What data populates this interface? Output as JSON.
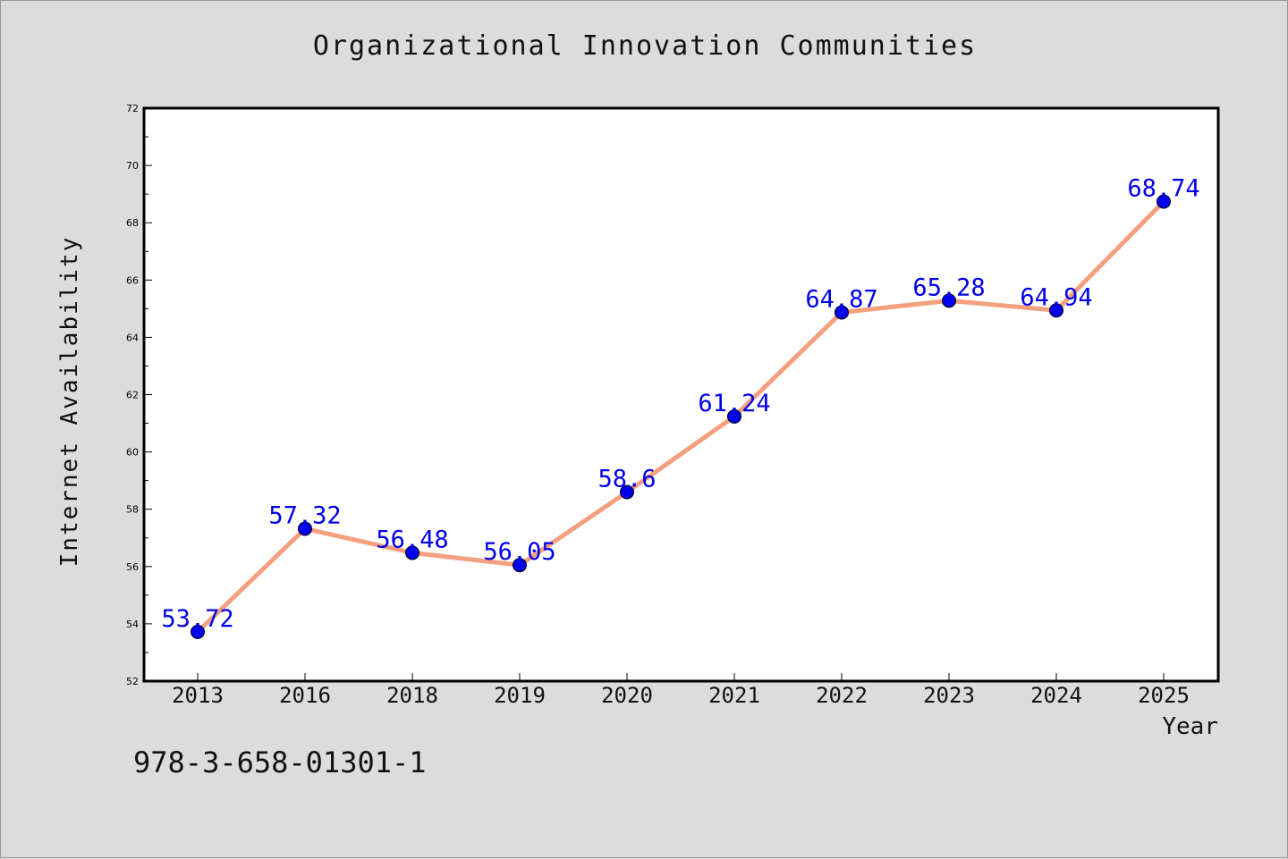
{
  "chart_data": {
    "type": "line",
    "title": "Organizational Innovation Communities",
    "xlabel": "Year",
    "ylabel": "Internet Availability",
    "categories": [
      "2013",
      "2016",
      "2018",
      "2019",
      "2020",
      "2021",
      "2022",
      "2023",
      "2024",
      "2025"
    ],
    "series": [
      {
        "values": [
          53.72,
          57.32,
          56.48,
          56.05,
          58.6,
          61.24,
          64.87,
          65.28,
          64.94,
          68.74
        ]
      }
    ],
    "data_labels": [
      "53.72",
      "57.32",
      "56.48",
      "56.05",
      "58.6",
      "61.24",
      "64.87",
      "65.28",
      "64.94",
      "68.74"
    ],
    "ylim": [
      52,
      72
    ],
    "yticks": [
      52,
      54,
      56,
      58,
      60,
      62,
      64,
      66,
      68,
      70,
      72
    ],
    "grid": false,
    "colors": {
      "line": "#f4a07f",
      "marker": "#0000ee",
      "label": "#0000ee",
      "background": "#dcdcdc",
      "plot_background": "#ffffff"
    }
  },
  "footer": {
    "identifier": "978-3-658-01301-1"
  }
}
